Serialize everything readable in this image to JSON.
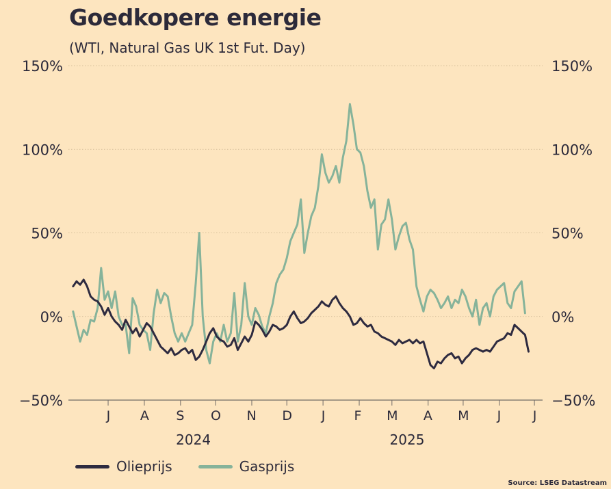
{
  "title": "Goedkopere energie",
  "subtitle": "(WTI, Natural Gas UK 1st Fut. Day)",
  "source": "Source: LSEG Datastream",
  "legend": {
    "oil": "Olieprijs",
    "gas": "Gasprijs"
  },
  "colors": {
    "background": "#fde5bf",
    "oil": "#2e2b40",
    "gas": "#86b39a",
    "grid": "#c9b28f",
    "text": "#2c2a3a"
  },
  "chart_data": {
    "type": "line",
    "title": "Goedkopere energie",
    "subtitle": "(WTI, Natural Gas UK 1st Fut. Day)",
    "ylim": [
      -50,
      150
    ],
    "y_ticks": [
      150,
      100,
      50,
      0,
      -50
    ],
    "y_tick_labels": [
      "150%",
      "100%",
      "50%",
      "0%",
      "−50%"
    ],
    "x_range": [
      "2024-05-28",
      "2025-07-08"
    ],
    "grid": true,
    "legend_position": "bottom-left",
    "month_ticks": [
      {
        "label": "J",
        "date": "2024-07-01"
      },
      {
        "label": "A",
        "date": "2024-08-01"
      },
      {
        "label": "S",
        "date": "2024-09-01"
      },
      {
        "label": "O",
        "date": "2024-10-01"
      },
      {
        "label": "N",
        "date": "2024-11-01"
      },
      {
        "label": "D",
        "date": "2024-12-01"
      },
      {
        "label": "J",
        "date": "2025-01-01"
      },
      {
        "label": "F",
        "date": "2025-02-01"
      },
      {
        "label": "M",
        "date": "2025-03-01"
      },
      {
        "label": "A",
        "date": "2025-04-01"
      },
      {
        "label": "M",
        "date": "2025-05-01"
      },
      {
        "label": "J",
        "date": "2025-06-01"
      },
      {
        "label": "J",
        "date": "2025-07-01"
      }
    ],
    "year_labels": [
      {
        "label": "2024",
        "date": "2024-09-12"
      },
      {
        "label": "2025",
        "date": "2025-03-14"
      }
    ],
    "series": [
      {
        "name": "Olieprijs",
        "color": "#2e2b40",
        "points": [
          [
            "2024-06-01",
            18
          ],
          [
            "2024-06-04",
            21
          ],
          [
            "2024-06-07",
            19
          ],
          [
            "2024-06-10",
            22
          ],
          [
            "2024-06-13",
            18
          ],
          [
            "2024-06-16",
            12
          ],
          [
            "2024-06-19",
            10
          ],
          [
            "2024-06-22",
            9
          ],
          [
            "2024-06-25",
            6
          ],
          [
            "2024-06-28",
            1
          ],
          [
            "2024-07-01",
            5
          ],
          [
            "2024-07-04",
            0
          ],
          [
            "2024-07-07",
            -3
          ],
          [
            "2024-07-10",
            -5
          ],
          [
            "2024-07-13",
            -8
          ],
          [
            "2024-07-16",
            -2
          ],
          [
            "2024-07-19",
            -6
          ],
          [
            "2024-07-22",
            -10
          ],
          [
            "2024-07-25",
            -7
          ],
          [
            "2024-07-28",
            -12
          ],
          [
            "2024-07-31",
            -8
          ],
          [
            "2024-08-03",
            -4
          ],
          [
            "2024-08-06",
            -6
          ],
          [
            "2024-08-09",
            -10
          ],
          [
            "2024-08-12",
            -14
          ],
          [
            "2024-08-15",
            -18
          ],
          [
            "2024-08-18",
            -20
          ],
          [
            "2024-08-21",
            -22
          ],
          [
            "2024-08-24",
            -19
          ],
          [
            "2024-08-27",
            -23
          ],
          [
            "2024-08-30",
            -22
          ],
          [
            "2024-09-02",
            -20
          ],
          [
            "2024-09-05",
            -19
          ],
          [
            "2024-09-08",
            -22
          ],
          [
            "2024-09-11",
            -20
          ],
          [
            "2024-09-14",
            -26
          ],
          [
            "2024-09-17",
            -24
          ],
          [
            "2024-09-20",
            -20
          ],
          [
            "2024-09-23",
            -15
          ],
          [
            "2024-09-26",
            -10
          ],
          [
            "2024-09-29",
            -7
          ],
          [
            "2024-10-02",
            -12
          ],
          [
            "2024-10-05",
            -14
          ],
          [
            "2024-10-08",
            -15
          ],
          [
            "2024-10-11",
            -18
          ],
          [
            "2024-10-14",
            -17
          ],
          [
            "2024-10-17",
            -13
          ],
          [
            "2024-10-20",
            -20
          ],
          [
            "2024-10-23",
            -16
          ],
          [
            "2024-10-26",
            -12
          ],
          [
            "2024-10-29",
            -15
          ],
          [
            "2024-11-01",
            -11
          ],
          [
            "2024-11-04",
            -3
          ],
          [
            "2024-11-07",
            -5
          ],
          [
            "2024-11-10",
            -8
          ],
          [
            "2024-11-13",
            -12
          ],
          [
            "2024-11-16",
            -9
          ],
          [
            "2024-11-19",
            -5
          ],
          [
            "2024-11-22",
            -6
          ],
          [
            "2024-11-25",
            -8
          ],
          [
            "2024-11-28",
            -7
          ],
          [
            "2024-12-01",
            -5
          ],
          [
            "2024-12-04",
            0
          ],
          [
            "2024-12-07",
            3
          ],
          [
            "2024-12-10",
            -1
          ],
          [
            "2024-12-13",
            -4
          ],
          [
            "2024-12-16",
            -3
          ],
          [
            "2024-12-19",
            -1
          ],
          [
            "2024-12-22",
            2
          ],
          [
            "2024-12-25",
            4
          ],
          [
            "2024-12-28",
            6
          ],
          [
            "2024-12-31",
            9
          ],
          [
            "2025-01-03",
            7
          ],
          [
            "2025-01-06",
            6
          ],
          [
            "2025-01-09",
            10
          ],
          [
            "2025-01-12",
            12
          ],
          [
            "2025-01-15",
            8
          ],
          [
            "2025-01-18",
            5
          ],
          [
            "2025-01-21",
            3
          ],
          [
            "2025-01-24",
            0
          ],
          [
            "2025-01-27",
            -5
          ],
          [
            "2025-01-30",
            -4
          ],
          [
            "2025-02-02",
            -1
          ],
          [
            "2025-02-05",
            -4
          ],
          [
            "2025-02-08",
            -6
          ],
          [
            "2025-02-11",
            -5
          ],
          [
            "2025-02-14",
            -9
          ],
          [
            "2025-02-17",
            -10
          ],
          [
            "2025-02-20",
            -12
          ],
          [
            "2025-02-23",
            -13
          ],
          [
            "2025-02-26",
            -14
          ],
          [
            "2025-03-01",
            -15
          ],
          [
            "2025-03-04",
            -17
          ],
          [
            "2025-03-07",
            -14
          ],
          [
            "2025-03-10",
            -16
          ],
          [
            "2025-03-13",
            -15
          ],
          [
            "2025-03-16",
            -14
          ],
          [
            "2025-03-19",
            -16
          ],
          [
            "2025-03-22",
            -14
          ],
          [
            "2025-03-25",
            -16
          ],
          [
            "2025-03-28",
            -15
          ],
          [
            "2025-03-31",
            -22
          ],
          [
            "2025-04-03",
            -29
          ],
          [
            "2025-04-06",
            -31
          ],
          [
            "2025-04-09",
            -27
          ],
          [
            "2025-04-12",
            -28
          ],
          [
            "2025-04-15",
            -25
          ],
          [
            "2025-04-18",
            -23
          ],
          [
            "2025-04-21",
            -22
          ],
          [
            "2025-04-24",
            -25
          ],
          [
            "2025-04-27",
            -24
          ],
          [
            "2025-04-30",
            -28
          ],
          [
            "2025-05-03",
            -25
          ],
          [
            "2025-05-06",
            -23
          ],
          [
            "2025-05-09",
            -20
          ],
          [
            "2025-05-12",
            -19
          ],
          [
            "2025-05-15",
            -20
          ],
          [
            "2025-05-18",
            -21
          ],
          [
            "2025-05-21",
            -20
          ],
          [
            "2025-05-24",
            -21
          ],
          [
            "2025-05-27",
            -18
          ],
          [
            "2025-05-30",
            -15
          ],
          [
            "2025-06-02",
            -14
          ],
          [
            "2025-06-05",
            -13
          ],
          [
            "2025-06-08",
            -10
          ],
          [
            "2025-06-11",
            -11
          ],
          [
            "2025-06-14",
            -5
          ],
          [
            "2025-06-17",
            -7
          ],
          [
            "2025-06-20",
            -9
          ],
          [
            "2025-06-23",
            -11
          ],
          [
            "2025-06-26",
            -21
          ]
        ]
      },
      {
        "name": "Gasprijs",
        "color": "#86b39a",
        "points": [
          [
            "2024-06-01",
            3
          ],
          [
            "2024-06-04",
            -6
          ],
          [
            "2024-06-07",
            -15
          ],
          [
            "2024-06-10",
            -8
          ],
          [
            "2024-06-13",
            -11
          ],
          [
            "2024-06-16",
            -2
          ],
          [
            "2024-06-19",
            -3
          ],
          [
            "2024-06-22",
            5
          ],
          [
            "2024-06-25",
            29
          ],
          [
            "2024-06-28",
            10
          ],
          [
            "2024-07-01",
            15
          ],
          [
            "2024-07-04",
            5
          ],
          [
            "2024-07-07",
            15
          ],
          [
            "2024-07-10",
            0
          ],
          [
            "2024-07-13",
            -5
          ],
          [
            "2024-07-16",
            -5
          ],
          [
            "2024-07-19",
            -22
          ],
          [
            "2024-07-22",
            11
          ],
          [
            "2024-07-25",
            6
          ],
          [
            "2024-07-28",
            -5
          ],
          [
            "2024-07-31",
            -8
          ],
          [
            "2024-08-03",
            -10
          ],
          [
            "2024-08-06",
            -20
          ],
          [
            "2024-08-09",
            2
          ],
          [
            "2024-08-12",
            16
          ],
          [
            "2024-08-15",
            8
          ],
          [
            "2024-08-18",
            14
          ],
          [
            "2024-08-21",
            12
          ],
          [
            "2024-08-24",
            0
          ],
          [
            "2024-08-27",
            -10
          ],
          [
            "2024-08-30",
            -15
          ],
          [
            "2024-09-02",
            -10
          ],
          [
            "2024-09-05",
            -15
          ],
          [
            "2024-09-08",
            -10
          ],
          [
            "2024-09-11",
            -5
          ],
          [
            "2024-09-14",
            20
          ],
          [
            "2024-09-17",
            50
          ],
          [
            "2024-09-20",
            0
          ],
          [
            "2024-09-23",
            -20
          ],
          [
            "2024-09-26",
            -28
          ],
          [
            "2024-09-29",
            -15
          ],
          [
            "2024-10-02",
            -10
          ],
          [
            "2024-10-05",
            -15
          ],
          [
            "2024-10-08",
            -5
          ],
          [
            "2024-10-11",
            -15
          ],
          [
            "2024-10-14",
            -10
          ],
          [
            "2024-10-17",
            14
          ],
          [
            "2024-10-20",
            -15
          ],
          [
            "2024-10-23",
            -5
          ],
          [
            "2024-10-26",
            20
          ],
          [
            "2024-10-29",
            0
          ],
          [
            "2024-11-01",
            -5
          ],
          [
            "2024-11-04",
            5
          ],
          [
            "2024-11-07",
            1
          ],
          [
            "2024-11-10",
            -6
          ],
          [
            "2024-11-13",
            -10
          ],
          [
            "2024-11-16",
            0
          ],
          [
            "2024-11-19",
            8
          ],
          [
            "2024-11-22",
            20
          ],
          [
            "2024-11-25",
            25
          ],
          [
            "2024-11-28",
            28
          ],
          [
            "2024-12-01",
            35
          ],
          [
            "2024-12-04",
            45
          ],
          [
            "2024-12-07",
            50
          ],
          [
            "2024-12-10",
            55
          ],
          [
            "2024-12-13",
            70
          ],
          [
            "2024-12-16",
            38
          ],
          [
            "2024-12-19",
            50
          ],
          [
            "2024-12-22",
            60
          ],
          [
            "2024-12-25",
            65
          ],
          [
            "2024-12-28",
            78
          ],
          [
            "2024-12-31",
            97
          ],
          [
            "2025-01-03",
            86
          ],
          [
            "2025-01-06",
            80
          ],
          [
            "2025-01-09",
            84
          ],
          [
            "2025-01-12",
            90
          ],
          [
            "2025-01-15",
            80
          ],
          [
            "2025-01-18",
            95
          ],
          [
            "2025-01-21",
            105
          ],
          [
            "2025-01-24",
            127
          ],
          [
            "2025-01-27",
            115
          ],
          [
            "2025-01-30",
            100
          ],
          [
            "2025-02-02",
            98
          ],
          [
            "2025-02-05",
            90
          ],
          [
            "2025-02-08",
            75
          ],
          [
            "2025-02-11",
            65
          ],
          [
            "2025-02-14",
            70
          ],
          [
            "2025-02-17",
            40
          ],
          [
            "2025-02-20",
            55
          ],
          [
            "2025-02-23",
            58
          ],
          [
            "2025-02-26",
            70
          ],
          [
            "2025-03-01",
            58
          ],
          [
            "2025-03-04",
            40
          ],
          [
            "2025-03-07",
            48
          ],
          [
            "2025-03-10",
            54
          ],
          [
            "2025-03-13",
            56
          ],
          [
            "2025-03-16",
            46
          ],
          [
            "2025-03-19",
            40
          ],
          [
            "2025-03-22",
            18
          ],
          [
            "2025-03-25",
            10
          ],
          [
            "2025-03-28",
            3
          ],
          [
            "2025-03-31",
            12
          ],
          [
            "2025-04-03",
            16
          ],
          [
            "2025-04-06",
            14
          ],
          [
            "2025-04-09",
            10
          ],
          [
            "2025-04-12",
            5
          ],
          [
            "2025-04-15",
            8
          ],
          [
            "2025-04-18",
            12
          ],
          [
            "2025-04-21",
            5
          ],
          [
            "2025-04-24",
            10
          ],
          [
            "2025-04-27",
            8
          ],
          [
            "2025-04-30",
            16
          ],
          [
            "2025-05-03",
            12
          ],
          [
            "2025-05-06",
            5
          ],
          [
            "2025-05-09",
            0
          ],
          [
            "2025-05-12",
            10
          ],
          [
            "2025-05-15",
            -5
          ],
          [
            "2025-05-18",
            5
          ],
          [
            "2025-05-21",
            8
          ],
          [
            "2025-05-24",
            0
          ],
          [
            "2025-05-27",
            12
          ],
          [
            "2025-05-30",
            16
          ],
          [
            "2025-06-02",
            18
          ],
          [
            "2025-06-05",
            20
          ],
          [
            "2025-06-08",
            8
          ],
          [
            "2025-06-11",
            5
          ],
          [
            "2025-06-14",
            15
          ],
          [
            "2025-06-17",
            18
          ],
          [
            "2025-06-20",
            21
          ],
          [
            "2025-06-23",
            2
          ]
        ]
      }
    ]
  }
}
